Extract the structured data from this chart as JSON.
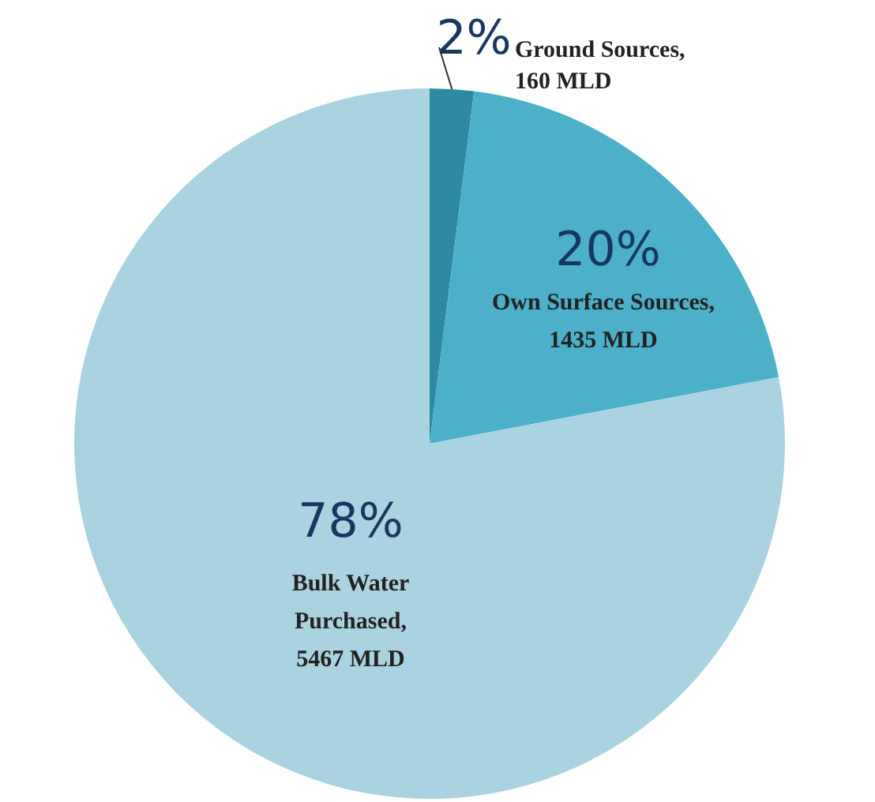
{
  "chart_data": {
    "type": "pie",
    "categories": [
      "Ground Sources, 160 MLD",
      "Own Surface Sources, 1435 MLD",
      "Bulk Water Purchased, 5467 MLD"
    ],
    "values": [
      2,
      20,
      78
    ],
    "value_labels": [
      "2%",
      "20%",
      "78%"
    ],
    "colors": [
      "#2e8aa0",
      "#4bb0c8",
      "#a9d3e0"
    ]
  }
}
